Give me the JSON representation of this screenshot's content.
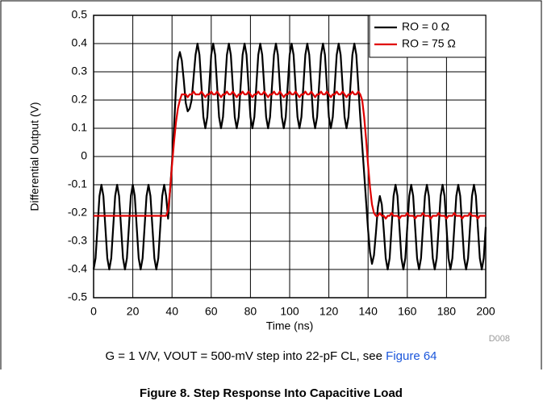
{
  "chart_data": {
    "type": "line",
    "xlabel": "Time (ns)",
    "ylabel": "Differential Output (V)",
    "xlim": [
      0,
      200
    ],
    "xticks": [
      0,
      20,
      40,
      60,
      80,
      100,
      120,
      140,
      160,
      180,
      200
    ],
    "ylim": [
      -0.5,
      0.5
    ],
    "yticks": [
      0.5,
      0.4,
      0.3,
      0.2,
      0.1,
      0,
      -0.1,
      -0.2,
      -0.3,
      -0.4,
      -0.5
    ],
    "grid": true,
    "legend": "upper right",
    "note": "D008",
    "caption": {
      "text": "G = 1 V/V, VOUT = 500-mV step into 22-pF CL, see ",
      "link": "Figure 64"
    },
    "figure_title": "Figure 8. Step Response Into Capacitive Load",
    "x": [
      0,
      1,
      2,
      3,
      4,
      5,
      6,
      7,
      8,
      9,
      10,
      11,
      12,
      13,
      14,
      15,
      16,
      17,
      18,
      19,
      20,
      21,
      22,
      23,
      24,
      25,
      26,
      27,
      28,
      29,
      30,
      31,
      32,
      33,
      34,
      35,
      36,
      37,
      38,
      39,
      40,
      41,
      42,
      43,
      44,
      45,
      46,
      47,
      48,
      49,
      50,
      51,
      52,
      53,
      54,
      55,
      56,
      57,
      58,
      59,
      60,
      61,
      62,
      63,
      64,
      65,
      66,
      67,
      68,
      69,
      70,
      71,
      72,
      73,
      74,
      75,
      76,
      77,
      78,
      79,
      80,
      81,
      82,
      83,
      84,
      85,
      86,
      87,
      88,
      89,
      90,
      91,
      92,
      93,
      94,
      95,
      96,
      97,
      98,
      99,
      100,
      101,
      102,
      103,
      104,
      105,
      106,
      107,
      108,
      109,
      110,
      111,
      112,
      113,
      114,
      115,
      116,
      117,
      118,
      119,
      120,
      121,
      122,
      123,
      124,
      125,
      126,
      127,
      128,
      129,
      130,
      131,
      132,
      133,
      134,
      135,
      136,
      137,
      138,
      139,
      140,
      141,
      142,
      143,
      144,
      145,
      146,
      147,
      148,
      149,
      150,
      151,
      152,
      153,
      154,
      155,
      156,
      157,
      158,
      159,
      160,
      161,
      162,
      163,
      164,
      165,
      166,
      167,
      168,
      169,
      170,
      171,
      172,
      173,
      174,
      175,
      176,
      177,
      178,
      179,
      180,
      181,
      182,
      183,
      184,
      185,
      186,
      187,
      188,
      189,
      190,
      191,
      192,
      193,
      194,
      195,
      196,
      197,
      198,
      199,
      200
    ],
    "series": [
      {
        "name": "RO = 0 Ω",
        "color": "#000000",
        "values": [
          -0.4,
          -0.36,
          -0.25,
          -0.14,
          -0.1,
          -0.14,
          -0.25,
          -0.36,
          -0.4,
          -0.36,
          -0.25,
          -0.14,
          -0.1,
          -0.14,
          -0.25,
          -0.36,
          -0.4,
          -0.36,
          -0.25,
          -0.14,
          -0.1,
          -0.14,
          -0.25,
          -0.36,
          -0.4,
          -0.36,
          -0.25,
          -0.14,
          -0.1,
          -0.14,
          -0.25,
          -0.36,
          -0.4,
          -0.36,
          -0.25,
          -0.14,
          -0.1,
          -0.14,
          -0.22,
          -0.12,
          -0.02,
          0.1,
          0.24,
          0.34,
          0.37,
          0.34,
          0.27,
          0.19,
          0.16,
          0.17,
          0.2,
          0.28,
          0.36,
          0.4,
          0.36,
          0.25,
          0.14,
          0.1,
          0.14,
          0.25,
          0.36,
          0.4,
          0.36,
          0.25,
          0.14,
          0.1,
          0.14,
          0.25,
          0.36,
          0.4,
          0.36,
          0.25,
          0.14,
          0.1,
          0.14,
          0.25,
          0.36,
          0.4,
          0.36,
          0.25,
          0.14,
          0.1,
          0.14,
          0.25,
          0.36,
          0.4,
          0.36,
          0.25,
          0.14,
          0.1,
          0.14,
          0.25,
          0.36,
          0.4,
          0.36,
          0.25,
          0.14,
          0.1,
          0.14,
          0.25,
          0.36,
          0.4,
          0.36,
          0.25,
          0.14,
          0.1,
          0.14,
          0.25,
          0.36,
          0.4,
          0.36,
          0.25,
          0.14,
          0.1,
          0.14,
          0.25,
          0.36,
          0.4,
          0.36,
          0.25,
          0.14,
          0.1,
          0.14,
          0.25,
          0.36,
          0.4,
          0.36,
          0.25,
          0.14,
          0.1,
          0.14,
          0.25,
          0.36,
          0.4,
          0.36,
          0.25,
          0.14,
          0.04,
          -0.06,
          -0.16,
          -0.26,
          -0.34,
          -0.38,
          -0.35,
          -0.27,
          -0.18,
          -0.14,
          -0.17,
          -0.26,
          -0.36,
          -0.4,
          -0.36,
          -0.25,
          -0.14,
          -0.1,
          -0.14,
          -0.25,
          -0.36,
          -0.4,
          -0.36,
          -0.25,
          -0.14,
          -0.1,
          -0.14,
          -0.25,
          -0.36,
          -0.4,
          -0.36,
          -0.25,
          -0.14,
          -0.1,
          -0.14,
          -0.25,
          -0.36,
          -0.4,
          -0.36,
          -0.25,
          -0.14,
          -0.1,
          -0.14,
          -0.25,
          -0.36,
          -0.4,
          -0.36,
          -0.25,
          -0.14,
          -0.1,
          -0.14,
          -0.25,
          -0.36,
          -0.4,
          -0.36,
          -0.25,
          -0.14,
          -0.1,
          -0.14,
          -0.25,
          -0.36,
          -0.4,
          -0.36,
          -0.25
        ]
      },
      {
        "name": "RO = 75 Ω",
        "color": "#e00000",
        "values": [
          -0.21,
          -0.21,
          -0.21,
          -0.21,
          -0.21,
          -0.21,
          -0.21,
          -0.21,
          -0.21,
          -0.21,
          -0.21,
          -0.21,
          -0.21,
          -0.21,
          -0.21,
          -0.21,
          -0.21,
          -0.21,
          -0.21,
          -0.21,
          -0.21,
          -0.21,
          -0.21,
          -0.21,
          -0.21,
          -0.21,
          -0.21,
          -0.21,
          -0.21,
          -0.21,
          -0.21,
          -0.21,
          -0.21,
          -0.21,
          -0.21,
          -0.21,
          -0.21,
          -0.21,
          -0.19,
          -0.12,
          -0.03,
          0.05,
          0.12,
          0.17,
          0.2,
          0.22,
          0.22,
          0.22,
          0.21,
          0.22,
          0.22,
          0.23,
          0.22,
          0.22,
          0.22,
          0.23,
          0.22,
          0.21,
          0.22,
          0.22,
          0.23,
          0.22,
          0.22,
          0.23,
          0.22,
          0.21,
          0.22,
          0.22,
          0.23,
          0.22,
          0.22,
          0.23,
          0.22,
          0.21,
          0.22,
          0.22,
          0.23,
          0.22,
          0.22,
          0.23,
          0.22,
          0.21,
          0.22,
          0.22,
          0.23,
          0.22,
          0.22,
          0.23,
          0.22,
          0.21,
          0.22,
          0.22,
          0.23,
          0.22,
          0.22,
          0.23,
          0.22,
          0.21,
          0.22,
          0.22,
          0.23,
          0.22,
          0.22,
          0.23,
          0.22,
          0.21,
          0.22,
          0.22,
          0.23,
          0.22,
          0.22,
          0.23,
          0.22,
          0.21,
          0.22,
          0.22,
          0.23,
          0.22,
          0.22,
          0.23,
          0.22,
          0.21,
          0.22,
          0.22,
          0.23,
          0.22,
          0.22,
          0.23,
          0.22,
          0.21,
          0.22,
          0.22,
          0.23,
          0.22,
          0.22,
          0.23,
          0.22,
          0.2,
          0.14,
          0.06,
          -0.03,
          -0.11,
          -0.17,
          -0.2,
          -0.21,
          -0.21,
          -0.2,
          -0.21,
          -0.21,
          -0.22,
          -0.21,
          -0.21,
          -0.2,
          -0.21,
          -0.21,
          -0.21,
          -0.22,
          -0.21,
          -0.21,
          -0.21,
          -0.2,
          -0.21,
          -0.21,
          -0.21,
          -0.22,
          -0.21,
          -0.21,
          -0.21,
          -0.2,
          -0.21,
          -0.21,
          -0.21,
          -0.22,
          -0.21,
          -0.21,
          -0.21,
          -0.2,
          -0.21,
          -0.21,
          -0.21,
          -0.22,
          -0.21,
          -0.21,
          -0.21,
          -0.2,
          -0.21,
          -0.21,
          -0.21,
          -0.22,
          -0.21,
          -0.21,
          -0.21,
          -0.2,
          -0.21,
          -0.21,
          -0.21,
          -0.22,
          -0.21,
          -0.21,
          -0.21,
          -0.21
        ]
      }
    ]
  }
}
